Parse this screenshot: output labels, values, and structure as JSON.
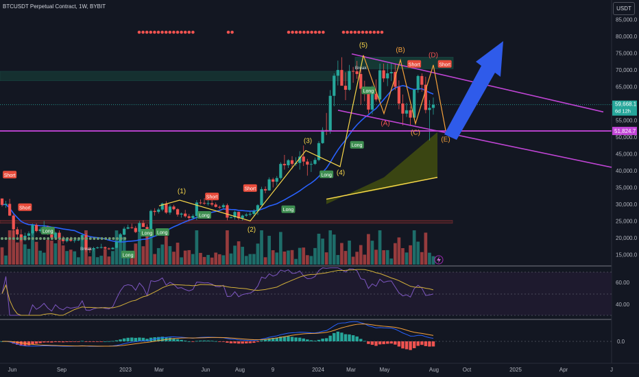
{
  "header": {
    "title": "BTCUSDT Perpetual Contract, 1W, BYBIT"
  },
  "currency_button": "USDT",
  "colors": {
    "up": "#26a69a",
    "down": "#ef5350",
    "ma": "#2962ff",
    "channel": "#c145d6",
    "wave_impulse": "#f9d84a",
    "wave_correction": "#f7a23b",
    "arrow": "#2f5bea",
    "rsi": "#7e57c2",
    "rsi_ma": "#d4b13a",
    "cloud": "#3f4a11"
  },
  "chart_data": [
    {
      "type": "candlestick",
      "title": "BTCUSDT Perpetual Contract, 1W, BYBIT",
      "x_tick_labels": [
        "Jun",
        "Sep",
        "2023",
        "Mar",
        "Jun",
        "Aug",
        "9",
        "2024",
        "Mar",
        "May",
        "Aug",
        "Oct",
        "2025",
        "Apr",
        "J"
      ],
      "y_tick_labels": [
        "85,000.0",
        "80,000.0",
        "75,000.0",
        "70,000.0",
        "65,000.0",
        "60,000.0",
        "55,000.0",
        "50,000.0",
        "45,000.0",
        "40,000.0",
        "35,000.0",
        "30,000.0",
        "25,000.0",
        "20,000.0",
        "15,000.0"
      ],
      "ylim": [
        12000,
        88000
      ],
      "last_price": "59,668.1",
      "countdown": "6d 12h",
      "support_price": "51,824.7",
      "elliott_labels": [
        "(1)",
        "(2)",
        "(3)",
        "(4)",
        "(5)",
        "(A)",
        "(B)",
        "(C)",
        "(D)",
        "(E)"
      ],
      "signals": [
        {
          "text": "Short",
          "kind": "short",
          "week": 2,
          "price": 38500
        },
        {
          "text": "Short",
          "kind": "short",
          "week": 6,
          "price": 28800
        },
        {
          "text": "Long",
          "kind": "long",
          "week": 12,
          "price": 21800
        },
        {
          "text": "Break",
          "kind": "break",
          "week": 22,
          "price": 16300
        },
        {
          "text": "Long",
          "kind": "long",
          "week": 33,
          "price": 14700
        },
        {
          "text": "Long",
          "kind": "long",
          "week": 38,
          "price": 21200
        },
        {
          "text": "Long",
          "kind": "long",
          "week": 42,
          "price": 21400
        },
        {
          "text": "Long",
          "kind": "long",
          "week": 53,
          "price": 26500
        },
        {
          "text": "Short",
          "kind": "short",
          "week": 55,
          "price": 32000
        },
        {
          "text": "Short",
          "kind": "short",
          "week": 65,
          "price": 34500
        },
        {
          "text": "Long",
          "kind": "long",
          "week": 75,
          "price": 28200
        },
        {
          "text": "Long",
          "kind": "long",
          "week": 85,
          "price": 38600
        },
        {
          "text": "Long",
          "kind": "long",
          "week": 93,
          "price": 47400
        },
        {
          "text": "Long",
          "kind": "long",
          "week": 96,
          "price": 63600
        },
        {
          "text": "Break",
          "kind": "break",
          "week": 94,
          "price": 70200
        },
        {
          "text": "Short",
          "kind": "short",
          "week": 108,
          "price": 71500
        },
        {
          "text": "Short",
          "kind": "short",
          "week": 116,
          "price": 71500
        }
      ],
      "candles": [
        [
          31700,
          31700,
          29300,
          29800
        ],
        [
          29800,
          31000,
          28900,
          30100
        ],
        [
          30100,
          31600,
          26500,
          26600
        ],
        [
          26600,
          27000,
          20000,
          22500
        ],
        [
          22500,
          23200,
          20200,
          21000
        ],
        [
          21000,
          22500,
          18900,
          19300
        ],
        [
          19300,
          21500,
          19000,
          20600
        ],
        [
          20600,
          21900,
          19200,
          21300
        ],
        [
          21300,
          24200,
          20800,
          23800
        ],
        [
          23800,
          24300,
          21600,
          22000
        ],
        [
          22000,
          23200,
          21500,
          22500
        ],
        [
          22500,
          25000,
          22200,
          23300
        ],
        [
          23300,
          23600,
          20800,
          21400
        ],
        [
          21400,
          21900,
          19600,
          20000
        ],
        [
          20000,
          21800,
          19500,
          21500
        ],
        [
          21500,
          22200,
          19600,
          19800
        ],
        [
          19800,
          20500,
          18200,
          19000
        ],
        [
          19000,
          20000,
          18600,
          19700
        ],
        [
          19700,
          20300,
          18800,
          19100
        ],
        [
          19100,
          19700,
          18500,
          19300
        ],
        [
          19300,
          20100,
          19000,
          19400
        ],
        [
          19400,
          21000,
          19000,
          20800
        ],
        [
          20800,
          21400,
          15700,
          16600
        ],
        [
          16600,
          17200,
          15500,
          16500
        ],
        [
          16500,
          17300,
          16000,
          16900
        ],
        [
          16900,
          17400,
          16700,
          17100
        ],
        [
          17100,
          18200,
          16800,
          17200
        ],
        [
          17200,
          17400,
          16500,
          16800
        ],
        [
          16800,
          17100,
          16400,
          16600
        ],
        [
          16600,
          17200,
          16500,
          17000
        ],
        [
          17000,
          19000,
          16900,
          18800
        ],
        [
          18800,
          21400,
          18600,
          20900
        ],
        [
          20900,
          23300,
          20700,
          22700
        ],
        [
          22700,
          23900,
          22500,
          23100
        ],
        [
          23100,
          24200,
          22700,
          22900
        ],
        [
          22900,
          23500,
          21400,
          21700
        ],
        [
          21700,
          25000,
          21500,
          24400
        ],
        [
          24400,
          25200,
          23300,
          23200
        ],
        [
          23200,
          24000,
          19600,
          20500
        ],
        [
          20500,
          28400,
          20400,
          28000
        ],
        [
          28000,
          28800,
          26600,
          27700
        ],
        [
          27700,
          28900,
          27200,
          28400
        ],
        [
          28400,
          30500,
          27900,
          30200
        ],
        [
          30200,
          30900,
          27100,
          27500
        ],
        [
          27500,
          29900,
          26900,
          29300
        ],
        [
          29300,
          29800,
          28200,
          28500
        ],
        [
          28500,
          28800,
          26300,
          26900
        ],
        [
          26900,
          27500,
          26000,
          27200
        ],
        [
          27200,
          28300,
          26000,
          26400
        ],
        [
          26400,
          27100,
          24900,
          25900
        ],
        [
          25900,
          27000,
          25500,
          26500
        ],
        [
          26500,
          31200,
          25300,
          30500
        ],
        [
          30500,
          31400,
          29900,
          30400
        ],
        [
          30400,
          31800,
          29800,
          30200
        ],
        [
          30200,
          31700,
          29600,
          30300
        ],
        [
          30300,
          31600,
          29400,
          29900
        ],
        [
          29900,
          30500,
          29000,
          29200
        ],
        [
          29200,
          29600,
          28600,
          29100
        ],
        [
          29100,
          30200,
          28700,
          29700
        ],
        [
          29700,
          30200,
          25200,
          26000
        ],
        [
          26000,
          26400,
          25800,
          26100
        ],
        [
          26100,
          28100,
          25400,
          27700
        ],
        [
          27700,
          27800,
          25300,
          25800
        ],
        [
          25800,
          26900,
          25100,
          26600
        ],
        [
          26600,
          27400,
          26200,
          26900
        ],
        [
          26900,
          28000,
          26400,
          27100
        ],
        [
          27100,
          28500,
          26600,
          27900
        ],
        [
          27900,
          30000,
          26800,
          29700
        ],
        [
          29700,
          35200,
          29600,
          34500
        ],
        [
          34500,
          35300,
          33300,
          34100
        ],
        [
          34100,
          38000,
          34000,
          37400
        ],
        [
          37400,
          37900,
          35000,
          36700
        ],
        [
          36700,
          38400,
          35600,
          37800
        ],
        [
          37800,
          42500,
          37300,
          42000
        ],
        [
          42000,
          44700,
          40300,
          41600
        ],
        [
          41600,
          43400,
          40800,
          43100
        ],
        [
          43100,
          44300,
          40500,
          42000
        ],
        [
          42000,
          44000,
          41400,
          42300
        ],
        [
          42300,
          45800,
          40300,
          44200
        ],
        [
          44200,
          47500,
          41400,
          42700
        ],
        [
          42700,
          43500,
          38500,
          41800
        ],
        [
          41800,
          42800,
          39600,
          42000
        ],
        [
          42000,
          43900,
          41700,
          43200
        ],
        [
          43200,
          48800,
          42800,
          48200
        ],
        [
          48200,
          52900,
          48000,
          52100
        ],
        [
          52100,
          57200,
          50600,
          51800
        ],
        [
          51800,
          64000,
          51000,
          62300
        ],
        [
          62300,
          69000,
          59200,
          68300
        ],
        [
          68300,
          72800,
          65400,
          70000
        ],
        [
          70000,
          73800,
          66000,
          65300
        ],
        [
          65300,
          69300,
          61000,
          64100
        ],
        [
          64100,
          71500,
          63800,
          69700
        ],
        [
          69700,
          70900,
          66200,
          69600
        ],
        [
          69600,
          72700,
          67400,
          68800
        ],
        [
          68800,
          70300,
          59600,
          64400
        ],
        [
          64400,
          66800,
          60700,
          63900
        ],
        [
          63900,
          64800,
          57000,
          58200
        ],
        [
          58200,
          65400,
          56800,
          62900
        ],
        [
          62900,
          67200,
          60600,
          61200
        ],
        [
          61200,
          71900,
          60600,
          69900
        ],
        [
          69900,
          71900,
          66400,
          67500
        ],
        [
          67500,
          71900,
          65200,
          69000
        ],
        [
          69000,
          71900,
          66700,
          69400
        ],
        [
          69400,
          71900,
          64000,
          65000
        ],
        [
          65000,
          66900,
          58300,
          60000
        ],
        [
          60000,
          62700,
          53500,
          57000
        ],
        [
          57000,
          60200,
          56000,
          58000
        ],
        [
          58000,
          59100,
          53500,
          55800
        ],
        [
          55800,
          64400,
          55500,
          64100
        ],
        [
          64100,
          68600,
          63200,
          68200
        ],
        [
          68200,
          69000,
          63500,
          65600
        ],
        [
          65600,
          68000,
          57100,
          58100
        ],
        [
          58100,
          61000,
          49000,
          58700
        ],
        [
          58700,
          61800,
          56700,
          59668
        ]
      ]
    }
  ]
}
